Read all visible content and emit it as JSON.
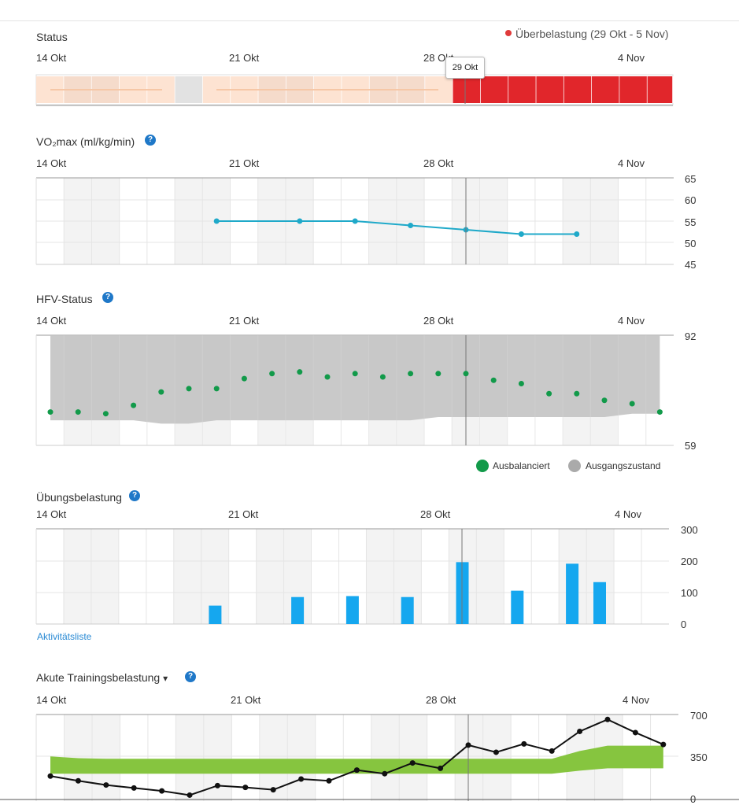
{
  "colors": {
    "overload": "#e1262b",
    "status_light": "#fde3d2",
    "status_line": "#f6c7a6",
    "vo2_line": "#1fa9c9",
    "hrv_dot": "#129a4a",
    "hrv_band": "#c3c3c3",
    "bar_blue": "#15a7ef",
    "acute_band": "#86c53f",
    "acute_line": "#111111",
    "shade": "#f3f3f3",
    "grid": "#e5e5e5"
  },
  "date_labels": [
    "14 Okt",
    "21 Okt",
    "28 Okt",
    "4 Nov"
  ],
  "status": {
    "title": "Status",
    "legend": "Überbelastung (29 Okt - 5 Nov)",
    "tooltip": "29 Okt"
  },
  "vo2": {
    "title": "VO₂max (ml/kg/min)",
    "help": "?"
  },
  "hrv": {
    "title": "HFV-Status",
    "help": "?",
    "legend_balanced": "Ausbalanciert",
    "legend_baseline": "Ausgangszustand"
  },
  "training_load": {
    "title": "Übungsbelastung",
    "help": "?",
    "link": "Aktivitätsliste"
  },
  "acute": {
    "title": "Akute Trainingsbelastung",
    "dropdown_icon": "▾",
    "help": "?"
  },
  "chart_data": [
    {
      "type": "bar",
      "name": "status",
      "title": "Status",
      "categories": [
        "14 Okt",
        "15 Okt",
        "16 Okt",
        "17 Okt",
        "18 Okt",
        "19 Okt",
        "20 Okt",
        "21 Okt",
        "22 Okt",
        "23 Okt",
        "24 Okt",
        "25 Okt",
        "26 Okt",
        "27 Okt",
        "28 Okt",
        "29 Okt",
        "30 Okt",
        "31 Okt",
        "1 Nov",
        "2 Nov",
        "3 Nov",
        "4 Nov",
        "5 Nov"
      ],
      "values": [
        "light",
        "light",
        "light",
        "light",
        "light",
        "none",
        "light",
        "light",
        "light",
        "light",
        "light",
        "light",
        "light",
        "light",
        "light",
        "overload",
        "overload",
        "overload",
        "overload",
        "overload",
        "overload",
        "overload",
        "overload"
      ],
      "legend": "Überbelastung (29 Okt - 5 Nov)"
    },
    {
      "type": "line",
      "name": "vo2max",
      "title": "VO₂max (ml/kg/min)",
      "x": [
        20,
        23,
        25,
        27,
        29,
        31,
        33
      ],
      "values": [
        55,
        55,
        55,
        54,
        53,
        52,
        52
      ],
      "ylim": [
        45,
        65
      ],
      "yticks": [
        "65",
        "60",
        "55",
        "50",
        "45"
      ]
    },
    {
      "type": "scatter",
      "name": "hrv",
      "title": "HFV-Status",
      "x": [
        14,
        15,
        16,
        17,
        18,
        19,
        20,
        21,
        22,
        23,
        24,
        25,
        26,
        27,
        28,
        29,
        30,
        31,
        32,
        33,
        34,
        35,
        36
      ],
      "values": [
        69,
        69,
        68.5,
        71,
        75,
        76,
        76,
        79,
        80.5,
        81,
        79.5,
        80.5,
        79.5,
        80.5,
        80.5,
        80.5,
        78.5,
        77.5,
        74.5,
        74.5,
        72.5,
        71.5,
        69
      ],
      "band_upper": [
        92,
        92,
        92,
        92,
        92,
        92,
        92,
        92,
        92,
        92,
        92,
        92,
        92,
        92,
        92,
        92,
        92,
        92,
        92,
        92,
        92,
        92,
        92
      ],
      "band_lower": [
        66.5,
        66.5,
        66.5,
        66.5,
        65.5,
        65.5,
        66.5,
        66.5,
        66.5,
        66.5,
        66.5,
        66.5,
        66.5,
        66.5,
        67.5,
        67.5,
        67.5,
        67.5,
        67.5,
        67.5,
        67.5,
        68.5,
        68.5
      ],
      "ylim": [
        59,
        92
      ],
      "yticks": [
        "92",
        "59"
      ],
      "legend": [
        "Ausbalanciert",
        "Ausgangszustand"
      ]
    },
    {
      "type": "bar",
      "name": "training_load",
      "title": "Übungsbelastung",
      "x": [
        20,
        23,
        25,
        27,
        29,
        31,
        33,
        34
      ],
      "values": [
        58,
        85,
        88,
        85,
        195,
        105,
        190,
        132
      ],
      "ylim": [
        0,
        300
      ],
      "yticks": [
        "300",
        "200",
        "100",
        "0"
      ]
    },
    {
      "type": "line",
      "name": "acute_training_load",
      "title": "Akute Trainingsbelastung",
      "x": [
        14,
        15,
        16,
        17,
        18,
        19,
        20,
        21,
        22,
        23,
        24,
        25,
        26,
        27,
        28,
        29,
        30,
        31,
        32,
        33,
        34,
        35,
        36
      ],
      "values": [
        190,
        150,
        115,
        90,
        65,
        30,
        110,
        95,
        75,
        165,
        150,
        240,
        210,
        300,
        255,
        450,
        390,
        460,
        400,
        565,
        665,
        555,
        455
      ],
      "band_lower": [
        210,
        210,
        210,
        210,
        210,
        210,
        210,
        210,
        210,
        210,
        210,
        210,
        210,
        210,
        210,
        210,
        210,
        210,
        210,
        235,
        255,
        255,
        255
      ],
      "band_upper": [
        355,
        340,
        335,
        335,
        335,
        335,
        335,
        335,
        335,
        335,
        335,
        335,
        335,
        335,
        335,
        335,
        335,
        335,
        335,
        400,
        445,
        445,
        445
      ],
      "ylim": [
        0,
        700
      ],
      "yticks": [
        "700",
        "350",
        "0"
      ]
    }
  ]
}
